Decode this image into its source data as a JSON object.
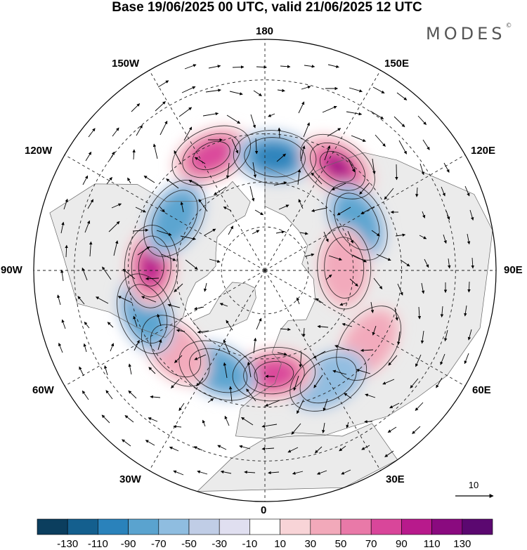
{
  "title": "Base 19/06/2025 00 UTC, valid 21/06/2025 12 UTC",
  "brand": "MODES",
  "brand_mark": "©",
  "longitude_labels": {
    "top": "180",
    "bottom": "0",
    "left": "90W",
    "right": "90E",
    "upper_left_1": "150W",
    "upper_left_2": "120W",
    "upper_right_1": "150E",
    "upper_right_2": "120E",
    "lower_left_1": "60W",
    "lower_left_2": "30W",
    "lower_right_1": "60E",
    "lower_right_2": "30E"
  },
  "reference_vector": {
    "label": "10",
    "value": 10
  },
  "colorbar": {
    "ticks": [
      "-130",
      "-110",
      "-90",
      "-70",
      "-50",
      "-30",
      "-10",
      "10",
      "30",
      "50",
      "70",
      "90",
      "110",
      "130"
    ],
    "colors": [
      "#0b3e5e",
      "#145f8e",
      "#2a82bb",
      "#5aa3cf",
      "#8fbde0",
      "#c0cde6",
      "#e0dff0",
      "#ffffff",
      "#f8d4d7",
      "#f2a9ba",
      "#e979a8",
      "#d9469a",
      "#b81a8c",
      "#8a0a7f",
      "#5b0870"
    ]
  },
  "anomaly_centers": [
    {
      "lon": -155,
      "lat": 48,
      "value": 95
    },
    {
      "lon": 175,
      "lat": 52,
      "value": -80
    },
    {
      "lon": 145,
      "lat": 48,
      "value": 130
    },
    {
      "lon": 118,
      "lat": 55,
      "value": -70
    },
    {
      "lon": 92,
      "lat": 63,
      "value": 45
    },
    {
      "lon": 55,
      "lat": 48,
      "value": 40
    },
    {
      "lon": 30,
      "lat": 48,
      "value": -55
    },
    {
      "lon": 5,
      "lat": 55,
      "value": 90
    },
    {
      "lon": -25,
      "lat": 53,
      "value": -70
    },
    {
      "lon": -48,
      "lat": 50,
      "value": 45
    },
    {
      "lon": -70,
      "lat": 48,
      "value": -60
    },
    {
      "lon": -92,
      "lat": 52,
      "value": 105
    },
    {
      "lon": -120,
      "lat": 55,
      "value": -75
    }
  ]
}
